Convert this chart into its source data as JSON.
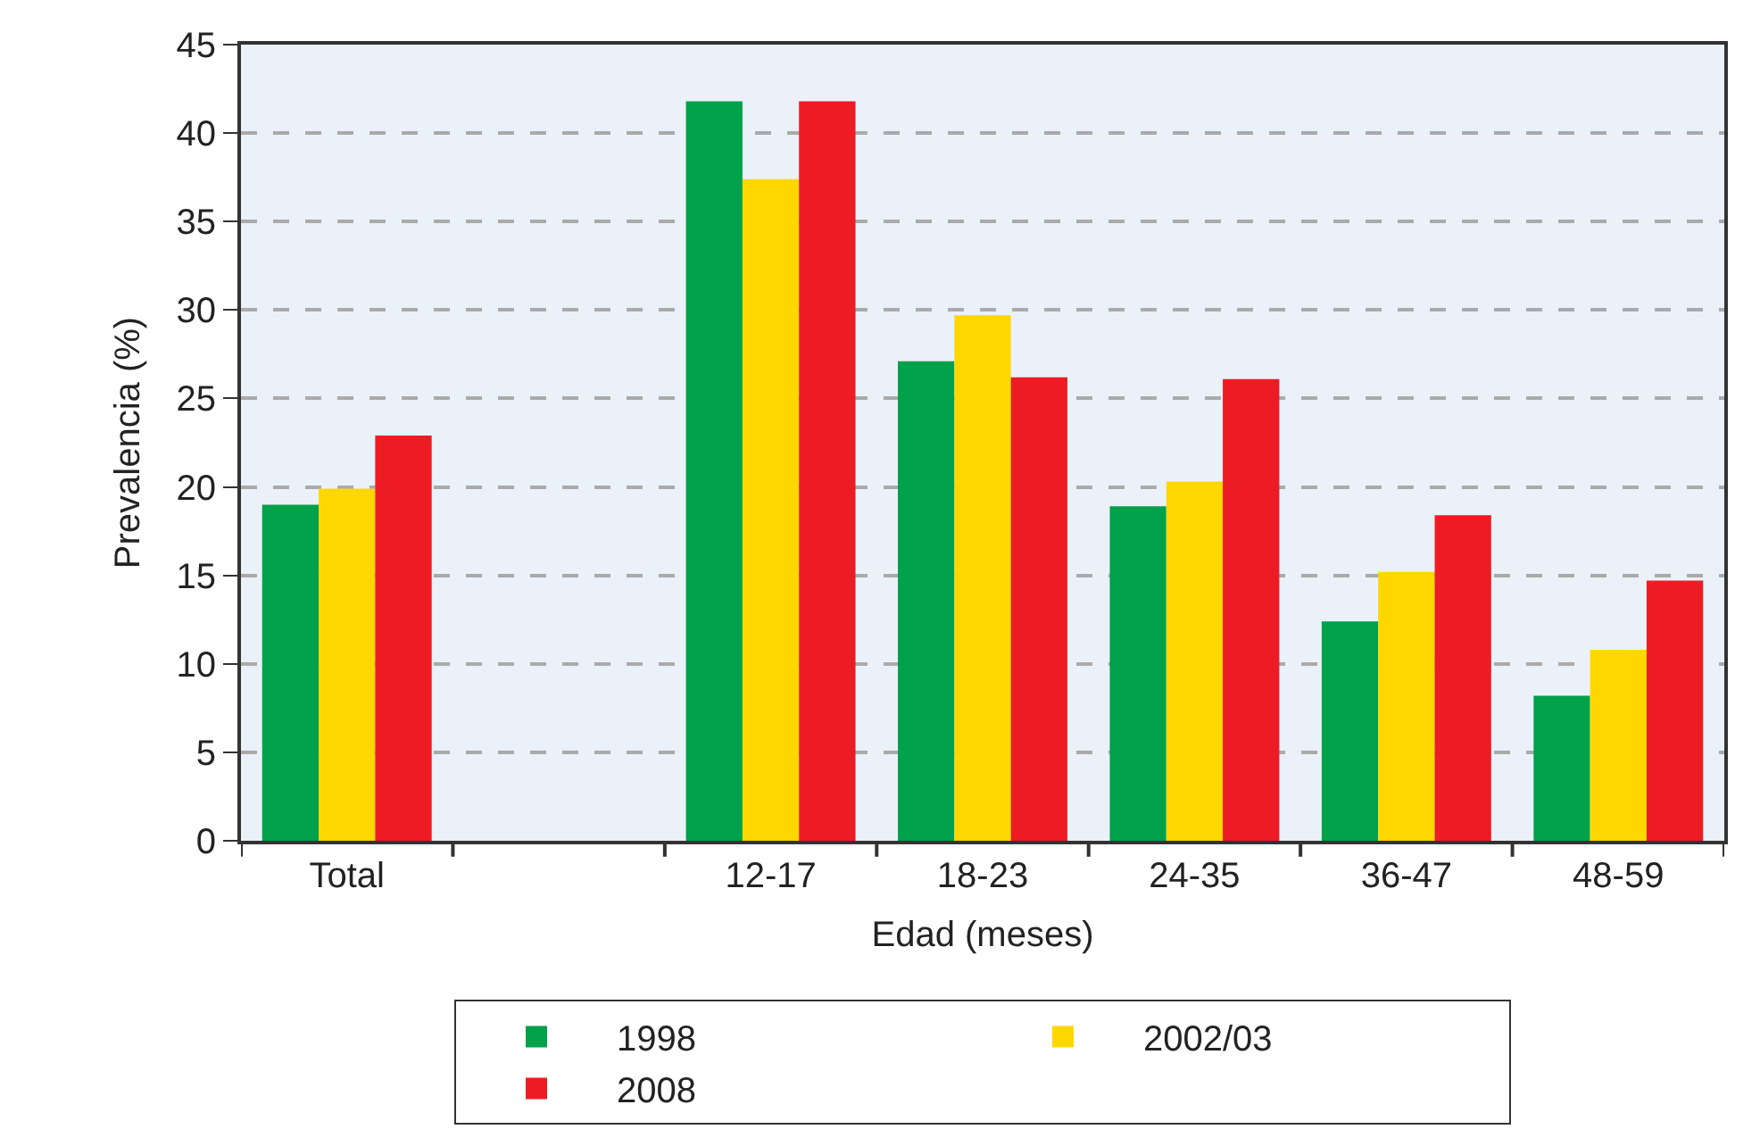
{
  "chart_data": {
    "type": "bar",
    "xlabel": "Edad (meses)",
    "ylabel": "Prevalencia (%)",
    "categories": [
      "Total",
      null,
      "12-17",
      "18-23",
      "24-35",
      "36-47",
      "48-59"
    ],
    "series": [
      {
        "name": "1998",
        "color": "#00a14b",
        "values": [
          19.0,
          null,
          41.8,
          27.1,
          18.9,
          12.4,
          8.2
        ]
      },
      {
        "name": "2002/03",
        "color": "#ffd700",
        "values": [
          19.9,
          null,
          37.4,
          29.7,
          20.3,
          15.2,
          10.8
        ]
      },
      {
        "name": "2008",
        "color": "#ed1c24",
        "values": [
          22.9,
          null,
          41.8,
          26.2,
          26.1,
          18.4,
          14.7
        ]
      }
    ],
    "ylim": [
      0,
      45
    ],
    "yticks": [
      0,
      5,
      10,
      15,
      20,
      25,
      30,
      35,
      40,
      45
    ],
    "grid": "y",
    "legend": "bottom"
  }
}
